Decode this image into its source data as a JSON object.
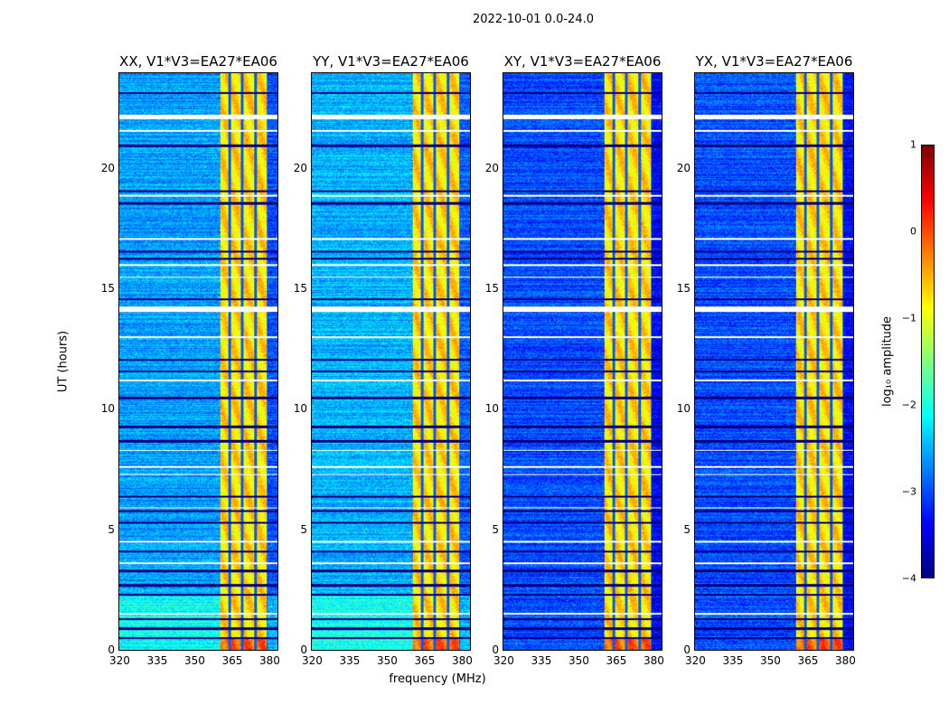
{
  "suptitle": "2022-10-01 0.0-24.0",
  "chart_data": {
    "type": "heatmap",
    "title": "2022-10-01 0.0-24.0",
    "xlabel": "frequency (MHz)",
    "ylabel": "UT (hours)",
    "xlim": [
      320,
      384
    ],
    "ylim": [
      0,
      24
    ],
    "xticks": [
      "320",
      "335",
      "350",
      "365",
      "380"
    ],
    "xtick_values": [
      320,
      335,
      350,
      365,
      380
    ],
    "yticks": [
      "0",
      "5",
      "10",
      "15",
      "20"
    ],
    "ytick_values": [
      0,
      5,
      10,
      15,
      20
    ],
    "colormap": "jet",
    "panels": [
      {
        "title": "XX, V1*V3=EA27*EA06",
        "background_log_amp": -2.6,
        "low_time_boost": true
      },
      {
        "title": "YY, V1*V3=EA27*EA06",
        "background_log_amp": -2.5,
        "low_time_boost": true
      },
      {
        "title": "XY, V1*V3=EA27*EA06",
        "background_log_amp": -3.0,
        "low_time_boost": false
      },
      {
        "title": "YX, V1*V3=EA27*EA06",
        "background_log_amp": -3.0,
        "low_time_boost": false
      }
    ],
    "rfi_band_mhz": [
      360.5,
      380
    ],
    "rfi_band_log_amp": -0.7,
    "band_gap_channels_mhz": [
      364.5,
      369.5,
      375,
      380
    ],
    "flagged_time_ranges_h": [
      [
        22.1,
        22.3
      ],
      [
        14.1,
        14.3
      ],
      [
        21.6,
        21.65
      ],
      [
        18.9,
        18.95
      ],
      [
        17.1,
        17.15
      ],
      [
        16.0,
        16.05
      ],
      [
        15.5,
        15.55
      ],
      [
        13.0,
        13.05
      ],
      [
        11.2,
        11.25
      ],
      [
        8.3,
        8.35
      ],
      [
        7.6,
        7.65
      ],
      [
        7.3,
        7.35
      ],
      [
        5.9,
        5.95
      ],
      [
        4.5,
        4.55
      ],
      [
        3.6,
        3.65
      ],
      [
        1.5,
        1.55
      ]
    ],
    "low_amp_time_rows_h": [
      23.2,
      21.0,
      19.1,
      18.6,
      16.6,
      16.3,
      14.6,
      12.1,
      11.6,
      10.5,
      9.3,
      8.7,
      6.4,
      5.8,
      5.3,
      4.1,
      3.3,
      2.7,
      2.3,
      1.3,
      0.9,
      0.5
    ],
    "colorbar": {
      "label": "log₁₀ amplitude",
      "range": [
        -4,
        1
      ],
      "ticks": [
        "−4",
        "−3",
        "−2",
        "−1",
        "0",
        "1"
      ],
      "tick_values": [
        -4,
        -3,
        -2,
        -1,
        0,
        1
      ]
    }
  }
}
